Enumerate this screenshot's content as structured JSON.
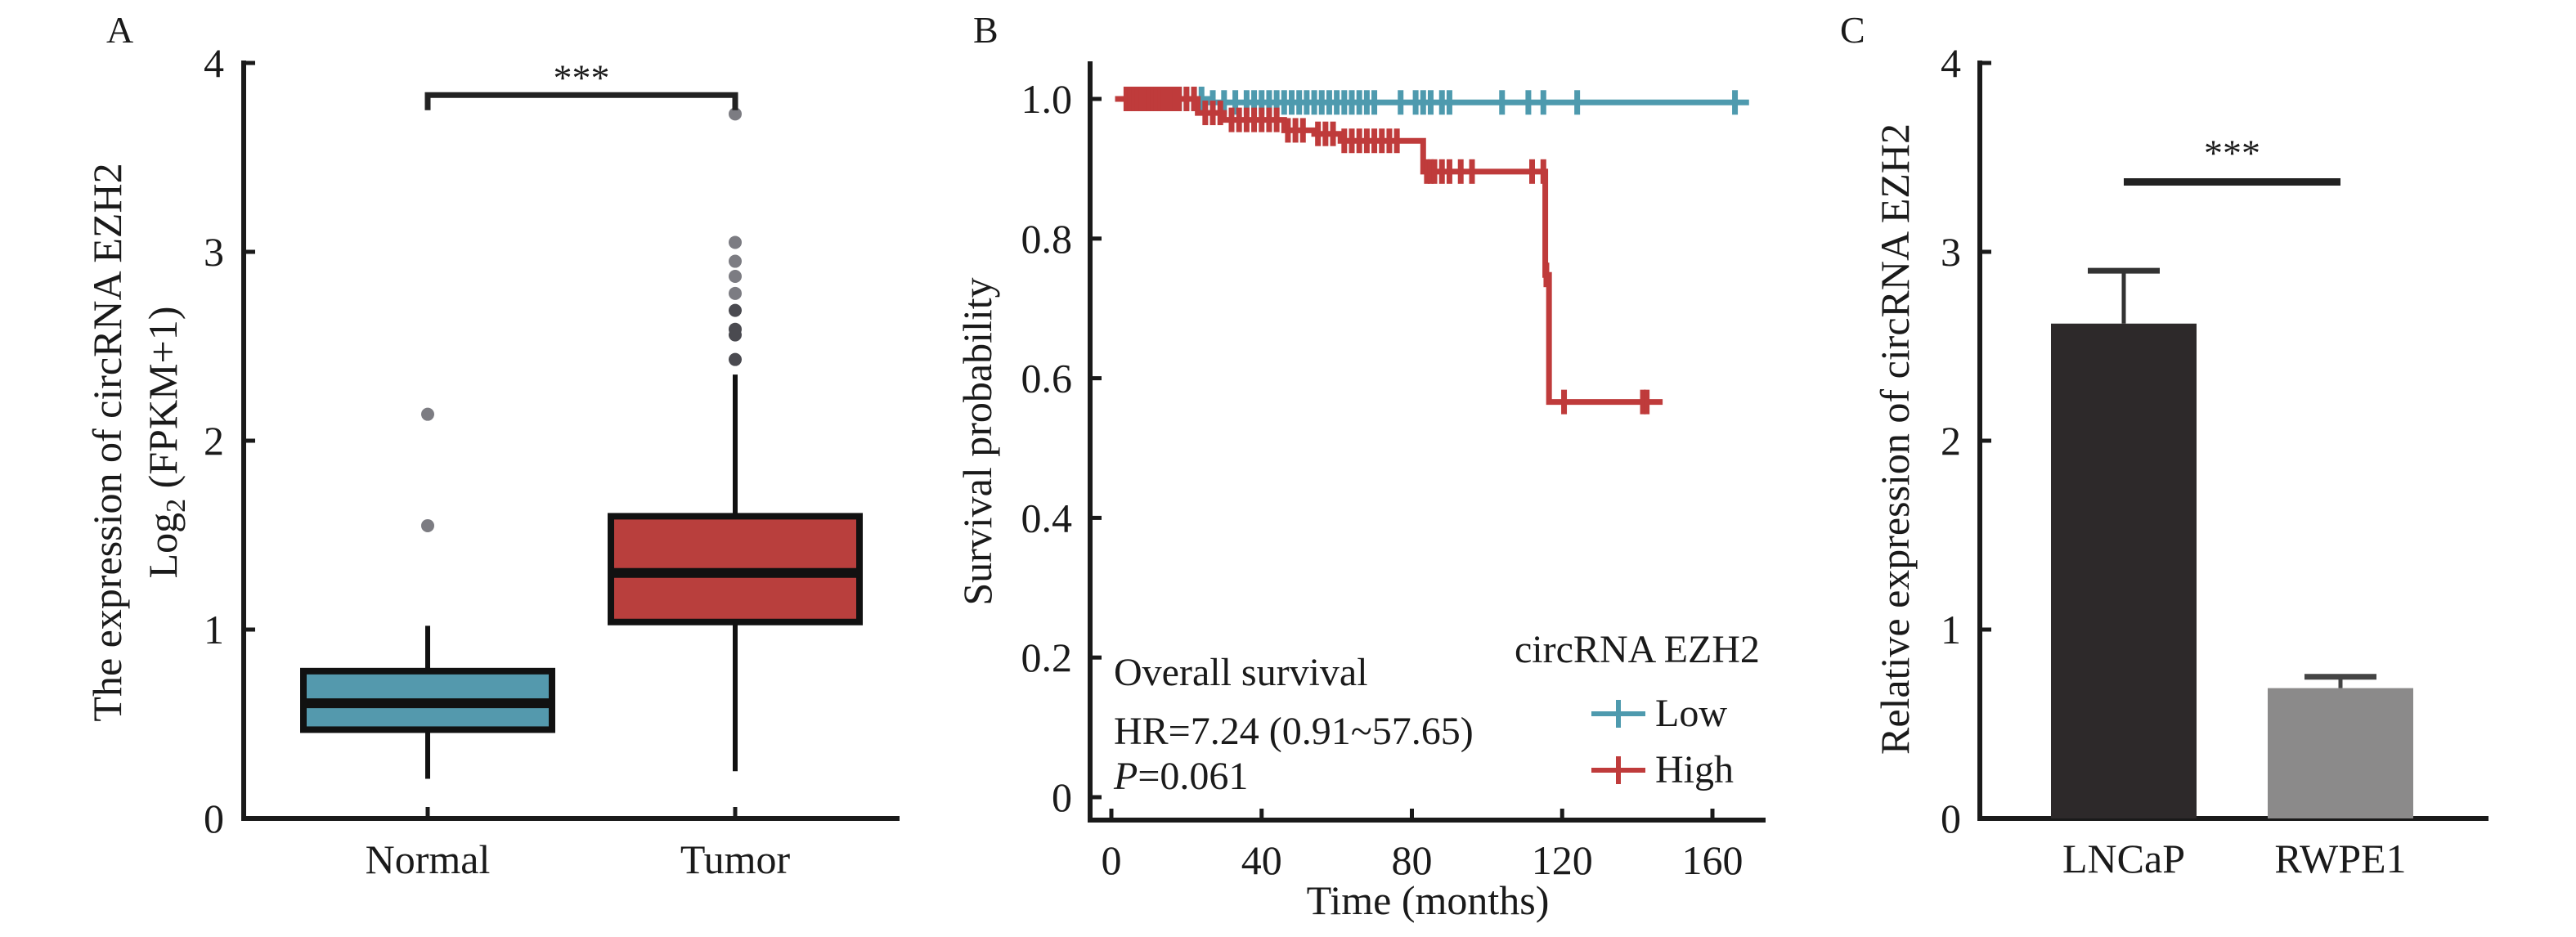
{
  "figure": {
    "panels": [
      {
        "label": "A"
      },
      {
        "label": "B"
      },
      {
        "label": "C"
      }
    ]
  },
  "colors": {
    "normal": "#5499ad",
    "tumor": "#b93f3d",
    "low": "#4e9aae",
    "high": "#bf3b3b",
    "lncap": "#2d292a",
    "rwpe1": "#8b8a8a",
    "outlier": "#7c7c82",
    "axis": "#1a1a1a"
  },
  "chart_data": [
    {
      "panel": "A",
      "type": "box",
      "title": "",
      "ylabel_line1": "The expression of circRNA EZH2",
      "ylabel_line2_prefix": "Log",
      "ylabel_line2_sub": "2",
      "ylabel_line2_suffix": " (FPKM+1)",
      "xlabel": "",
      "ylim": [
        0,
        4
      ],
      "yticks": [
        0,
        1,
        2,
        3,
        4
      ],
      "ytick_labels": [
        "0",
        "1",
        "2",
        "3",
        "4"
      ],
      "categories": [
        "Normal",
        "Tumor"
      ],
      "boxes": [
        {
          "name": "Normal",
          "whisker_low": 0.21,
          "q1": 0.47,
          "median": 0.61,
          "q3": 0.78,
          "whisker_high": 1.02,
          "outliers": [
            1.55,
            2.14
          ]
        },
        {
          "name": "Tumor",
          "whisker_low": 0.25,
          "q1": 1.04,
          "median": 1.3,
          "q3": 1.6,
          "whisker_high": 2.35,
          "outliers": [
            2.43,
            2.56,
            2.59,
            2.69,
            2.78,
            2.87,
            2.95,
            3.05,
            3.73
          ]
        }
      ],
      "significance": {
        "label": "***",
        "between": [
          "Normal",
          "Tumor"
        ],
        "y": 3.83,
        "drop_to": 3.75
      },
      "grid": false,
      "legend": "none"
    },
    {
      "panel": "B",
      "type": "line",
      "subtype": "kaplan-meier",
      "title": "",
      "xlabel": "Time (months)",
      "ylabel": "Survival probability",
      "xlim": [
        0,
        170
      ],
      "ylim": [
        0,
        1.05
      ],
      "xticks": [
        0,
        40,
        80,
        120,
        160
      ],
      "xtick_labels": [
        "0",
        "40",
        "80",
        "120",
        "160"
      ],
      "yticks": [
        0,
        0.2,
        0.4,
        0.6,
        0.8,
        1.0
      ],
      "ytick_labels": [
        "0",
        "0.2",
        "0.4",
        "0.6",
        "0.8",
        "1.0"
      ],
      "series": [
        {
          "name": "Low",
          "steps": [
            [
              1,
              1.0
            ],
            [
              26,
              0.995
            ],
            [
              168,
              0.995
            ]
          ],
          "censor_times": [
            6,
            8,
            10,
            12,
            14,
            16,
            18,
            20,
            22,
            24,
            27,
            30,
            33,
            36,
            38,
            40,
            42,
            44,
            46,
            48,
            50,
            52,
            54,
            56,
            58,
            60,
            62,
            64,
            66,
            68,
            70,
            77,
            81,
            83,
            85,
            88,
            90,
            104,
            111,
            115,
            124,
            166
          ]
        },
        {
          "name": "High",
          "steps": [
            [
              1,
              1.0
            ],
            [
              23,
              0.98
            ],
            [
              30,
              0.97
            ],
            [
              46,
              0.955
            ],
            [
              54,
              0.95
            ],
            [
              61,
              0.94
            ],
            [
              83,
              0.896
            ],
            [
              115.5,
              0.748
            ],
            [
              116.5,
              0.566
            ],
            [
              145,
              0.566
            ]
          ],
          "censor_times": [
            4,
            5,
            6,
            7,
            8,
            9,
            10,
            11,
            12,
            13,
            14,
            15,
            16,
            17,
            18,
            20,
            22,
            25,
            27,
            29,
            32,
            34,
            36,
            38,
            40,
            42,
            44,
            47,
            49,
            51,
            55,
            57,
            59,
            62,
            64,
            66,
            68,
            70,
            72,
            74,
            76,
            84,
            85,
            86,
            88,
            90,
            93,
            96,
            112,
            115,
            115.8,
            120.5,
            141.5,
            142.5
          ]
        }
      ],
      "legend": {
        "title": "circRNA EZH2",
        "entries": [
          "Low",
          "High"
        ],
        "placement": "bottom-right"
      },
      "annotations": {
        "line1": "Overall survival",
        "line2": "HR=7.24 (0.91~57.65)",
        "line3_italic": "P",
        "line3_rest": "=0.061"
      },
      "grid": false
    },
    {
      "panel": "C",
      "type": "bar",
      "title": "",
      "xlabel": "",
      "ylabel": "Relative expression of circRNA EZH2",
      "ylim": [
        0,
        4
      ],
      "yticks": [
        0,
        1,
        2,
        3,
        4
      ],
      "ytick_labels": [
        "0",
        "1",
        "2",
        "3",
        "4"
      ],
      "categories": [
        "LNCaP",
        "RWPE1"
      ],
      "values": [
        2.62,
        0.69
      ],
      "errors": [
        0.28,
        0.06
      ],
      "significance": {
        "label": "***",
        "between": [
          "LNCaP",
          "RWPE1"
        ],
        "y": 3.37
      },
      "grid": false,
      "legend": "none"
    }
  ]
}
